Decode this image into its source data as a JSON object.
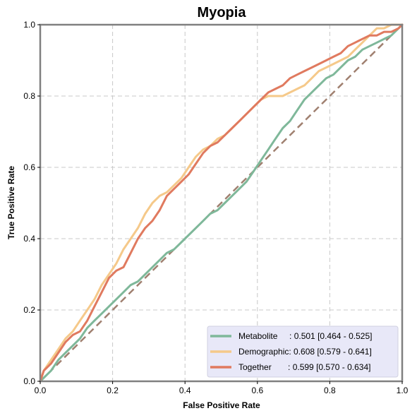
{
  "chart_data": {
    "type": "line",
    "title": "Myopia",
    "xlabel": "False Positive Rate",
    "ylabel": "True Positive Rate",
    "xlim": [
      0,
      1
    ],
    "ylim": [
      0,
      1
    ],
    "xticks": [
      "0.0",
      "0.2",
      "0.4",
      "0.6",
      "0.8",
      "1.0"
    ],
    "yticks": [
      "0.0",
      "0.2",
      "0.4",
      "0.6",
      "0.8",
      "1.0"
    ],
    "grid": true,
    "legend_position": "bottom-right",
    "diagonal": {
      "x": [
        0,
        1
      ],
      "y": [
        0,
        1
      ],
      "color": "#a08070",
      "style": "dashed"
    },
    "series": [
      {
        "name": "Metabolite",
        "legend_label": "Metabolite     : 0.501 [0.464 - 0.525]",
        "color": "#7fb89a",
        "x": [
          0.0,
          0.01,
          0.03,
          0.05,
          0.07,
          0.09,
          0.11,
          0.13,
          0.15,
          0.17,
          0.19,
          0.21,
          0.23,
          0.25,
          0.27,
          0.29,
          0.31,
          0.33,
          0.35,
          0.37,
          0.39,
          0.41,
          0.43,
          0.45,
          0.47,
          0.49,
          0.51,
          0.53,
          0.55,
          0.57,
          0.59,
          0.61,
          0.63,
          0.65,
          0.67,
          0.69,
          0.71,
          0.73,
          0.75,
          0.77,
          0.79,
          0.81,
          0.83,
          0.85,
          0.87,
          0.89,
          0.91,
          0.93,
          0.95,
          0.97,
          0.99,
          1.0
        ],
        "y": [
          0.0,
          0.01,
          0.03,
          0.06,
          0.08,
          0.1,
          0.12,
          0.15,
          0.17,
          0.19,
          0.21,
          0.23,
          0.25,
          0.27,
          0.28,
          0.3,
          0.32,
          0.34,
          0.36,
          0.37,
          0.39,
          0.41,
          0.43,
          0.45,
          0.47,
          0.48,
          0.5,
          0.52,
          0.54,
          0.56,
          0.59,
          0.62,
          0.65,
          0.68,
          0.71,
          0.73,
          0.76,
          0.79,
          0.81,
          0.83,
          0.85,
          0.86,
          0.88,
          0.9,
          0.91,
          0.93,
          0.94,
          0.95,
          0.96,
          0.97,
          0.99,
          1.0
        ]
      },
      {
        "name": "Demographic",
        "legend_label": "Demographic: 0.608 [0.579 - 0.641]",
        "color": "#f5c98a",
        "x": [
          0.0,
          0.01,
          0.03,
          0.05,
          0.07,
          0.09,
          0.11,
          0.13,
          0.15,
          0.17,
          0.19,
          0.21,
          0.23,
          0.25,
          0.27,
          0.29,
          0.31,
          0.33,
          0.35,
          0.37,
          0.39,
          0.41,
          0.43,
          0.45,
          0.47,
          0.49,
          0.51,
          0.53,
          0.55,
          0.57,
          0.59,
          0.61,
          0.63,
          0.65,
          0.67,
          0.69,
          0.71,
          0.73,
          0.75,
          0.77,
          0.79,
          0.81,
          0.83,
          0.85,
          0.87,
          0.89,
          0.91,
          0.93,
          0.95,
          0.97,
          0.99,
          1.0
        ],
        "y": [
          0.0,
          0.03,
          0.06,
          0.09,
          0.12,
          0.14,
          0.17,
          0.2,
          0.23,
          0.27,
          0.3,
          0.33,
          0.37,
          0.4,
          0.43,
          0.47,
          0.5,
          0.52,
          0.53,
          0.55,
          0.57,
          0.6,
          0.63,
          0.65,
          0.66,
          0.68,
          0.69,
          0.71,
          0.73,
          0.75,
          0.77,
          0.79,
          0.8,
          0.8,
          0.8,
          0.81,
          0.82,
          0.83,
          0.85,
          0.87,
          0.88,
          0.89,
          0.9,
          0.91,
          0.93,
          0.95,
          0.97,
          0.99,
          0.99,
          1.0,
          1.0,
          1.0
        ]
      },
      {
        "name": "Together",
        "legend_label": "Together       : 0.599 [0.570 - 0.634]",
        "color": "#e07a5f",
        "x": [
          0.0,
          0.01,
          0.03,
          0.05,
          0.07,
          0.09,
          0.11,
          0.13,
          0.15,
          0.17,
          0.19,
          0.21,
          0.23,
          0.25,
          0.27,
          0.29,
          0.31,
          0.33,
          0.35,
          0.37,
          0.39,
          0.41,
          0.43,
          0.45,
          0.47,
          0.49,
          0.51,
          0.53,
          0.55,
          0.57,
          0.59,
          0.61,
          0.63,
          0.65,
          0.67,
          0.69,
          0.71,
          0.73,
          0.75,
          0.77,
          0.79,
          0.81,
          0.83,
          0.85,
          0.87,
          0.89,
          0.91,
          0.93,
          0.95,
          0.97,
          0.99,
          1.0
        ],
        "y": [
          0.0,
          0.03,
          0.05,
          0.08,
          0.11,
          0.13,
          0.14,
          0.17,
          0.21,
          0.25,
          0.29,
          0.31,
          0.32,
          0.36,
          0.4,
          0.43,
          0.45,
          0.48,
          0.52,
          0.54,
          0.56,
          0.58,
          0.61,
          0.64,
          0.66,
          0.67,
          0.69,
          0.71,
          0.73,
          0.75,
          0.77,
          0.79,
          0.81,
          0.82,
          0.83,
          0.85,
          0.86,
          0.87,
          0.88,
          0.89,
          0.9,
          0.91,
          0.92,
          0.94,
          0.95,
          0.96,
          0.97,
          0.97,
          0.98,
          0.98,
          0.99,
          1.0
        ]
      }
    ]
  },
  "colors": {
    "legend_bg": "#e8e8f8",
    "axis_frame": "#808080"
  }
}
